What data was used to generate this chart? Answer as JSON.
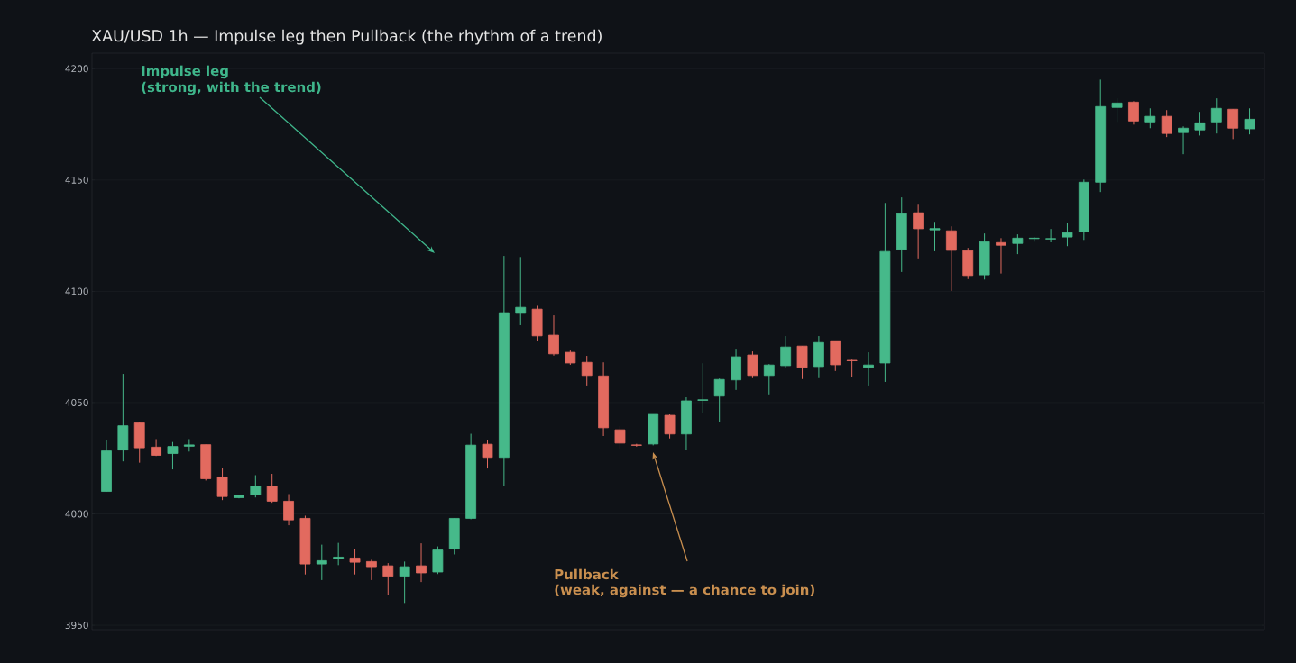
{
  "chart_data": {
    "type": "candlestick",
    "title": "XAU/USD 1h — Impulse leg then Pullback (the rhythm of a trend)",
    "categories": [
      null,
      null,
      null,
      null,
      null,
      null,
      null,
      null,
      null,
      null,
      null,
      null,
      null,
      null,
      null,
      null,
      null,
      null,
      null,
      null,
      null,
      null,
      null,
      null,
      null,
      null,
      null,
      null,
      null,
      null,
      null,
      null,
      null,
      null,
      null,
      null,
      null,
      null,
      null,
      null,
      null,
      null,
      null,
      null,
      null,
      null,
      null,
      null,
      null,
      null,
      null,
      null,
      null,
      null,
      null,
      null,
      null,
      null,
      null,
      null,
      null,
      null,
      null,
      null,
      null,
      null,
      null,
      null,
      null,
      null
    ],
    "ohlc": [
      [
        4010.1,
        4033,
        4010,
        4028.3
      ],
      [
        4028.7,
        4062.9,
        4023.6,
        4039.6
      ],
      [
        4040.9,
        4041,
        4023,
        4029.7
      ],
      [
        4030,
        4033.6,
        4026,
        4026.3
      ],
      [
        4027.1,
        4032.3,
        4020,
        4030.3
      ],
      [
        4030.4,
        4033.6,
        4028,
        4031
      ],
      [
        4031.1,
        4031.1,
        4015,
        4015.8
      ],
      [
        4016.6,
        4020.6,
        4006.2,
        4007.8
      ],
      [
        4007.3,
        4008.5,
        4007,
        4008.5
      ],
      [
        4008.5,
        4017.4,
        4007.4,
        4012.5
      ],
      [
        4012.5,
        4018,
        4005,
        4005.7
      ],
      [
        4005.7,
        4008.9,
        3994.9,
        3997.3
      ],
      [
        3998,
        3999.2,
        3972.8,
        3977.5
      ],
      [
        3977.5,
        3986.2,
        3970.3,
        3979
      ],
      [
        3979.8,
        3987,
        3977,
        3980.6
      ],
      [
        3980.2,
        3984.2,
        3972.8,
        3978.3
      ],
      [
        3978.6,
        3979.4,
        3970.3,
        3976.3
      ],
      [
        3976.7,
        3977.9,
        3963.5,
        3972
      ],
      [
        3972,
        3978.6,
        3960,
        3976.3
      ],
      [
        3976.7,
        3986.8,
        3969.4,
        3973.5
      ],
      [
        3973.9,
        3985.4,
        3973,
        3983.8
      ],
      [
        3984.2,
        3998,
        3981.8,
        3998
      ],
      [
        3998,
        4036,
        3997.6,
        4030.9
      ],
      [
        4031.3,
        4033.3,
        4020.4,
        4025.4
      ],
      [
        4025.4,
        4115.9,
        4012.4,
        4090.4
      ],
      [
        4090.1,
        4115.4,
        4084.8,
        4092.8
      ],
      [
        4092,
        4093.5,
        4077.5,
        4080
      ],
      [
        4080.3,
        4089.2,
        4071.1,
        4071.9
      ],
      [
        4072.6,
        4073.4,
        4067,
        4067.8
      ],
      [
        4068.1,
        4071,
        4057.7,
        4062.2
      ],
      [
        4062,
        4068.1,
        4035,
        4038.7
      ],
      [
        4037.8,
        4039.4,
        4029.4,
        4031.8
      ],
      [
        4031,
        4031.5,
        4030.2,
        4030.8
      ],
      [
        4031.4,
        4044.7,
        4030.8,
        4044.7
      ],
      [
        4044.3,
        4044.7,
        4033.9,
        4035.9
      ],
      [
        4035.9,
        4052.4,
        4028.6,
        4050.8
      ],
      [
        4051,
        4067.7,
        4045.2,
        4051.3
      ],
      [
        4052.9,
        4060.8,
        4041.1,
        4060.4
      ],
      [
        4060.2,
        4074.2,
        4055.7,
        4070.6
      ],
      [
        4071.4,
        4073,
        4061,
        4062.2
      ],
      [
        4062.2,
        4067.3,
        4053.7,
        4066.9
      ],
      [
        4066.6,
        4079.9,
        4065.8,
        4075
      ],
      [
        4075.4,
        4075.4,
        4060.6,
        4065.8
      ],
      [
        4066.2,
        4079.9,
        4061,
        4077
      ],
      [
        4077.8,
        4077.8,
        4064.2,
        4067
      ],
      [
        4069,
        4069.3,
        4061.4,
        4068.8
      ],
      [
        4065.8,
        4072.6,
        4057.7,
        4066.9
      ],
      [
        4067.8,
        4139.7,
        4059.3,
        4117.9
      ],
      [
        4118.8,
        4142.2,
        4108.7,
        4134.9
      ],
      [
        4135.3,
        4138.9,
        4114.8,
        4128.1
      ],
      [
        4127.6,
        4131.2,
        4118,
        4128.2
      ],
      [
        4127.2,
        4129.2,
        4100.2,
        4118.4
      ],
      [
        4118.3,
        4119.5,
        4105.5,
        4107.1
      ],
      [
        4107.4,
        4126,
        4105.3,
        4122.3
      ],
      [
        4121.9,
        4123.9,
        4108,
        4120.7
      ],
      [
        4121.5,
        4125.6,
        4116.7,
        4123.9
      ],
      [
        4123.7,
        4124.4,
        4122.3,
        4123.9
      ],
      [
        4123.5,
        4128,
        4122,
        4123.7
      ],
      [
        4124.4,
        4130.8,
        4120.3,
        4126.4
      ],
      [
        4126.8,
        4150.2,
        4123.1,
        4149
      ],
      [
        4149,
        4195.1,
        4144.6,
        4183
      ],
      [
        4182.6,
        4186.7,
        4176.1,
        4184.6
      ],
      [
        4185,
        4185.4,
        4174.9,
        4176.5
      ],
      [
        4176.1,
        4182.2,
        4173.3,
        4178.6
      ],
      [
        4178.6,
        4181.4,
        4169.3,
        4170.9
      ],
      [
        4171.3,
        4174.1,
        4161.6,
        4173.3
      ],
      [
        4172.5,
        4180.6,
        4170,
        4175.7
      ],
      [
        4176.1,
        4186.7,
        4170.9,
        4182.2
      ],
      [
        4181.8,
        4181.8,
        4168.4,
        4173.3
      ],
      [
        4173,
        4182.2,
        4170.5,
        4177.3
      ]
    ],
    "colors": [
      "#46b98a",
      "#46b98a",
      "#e26a5f",
      "#e26a5f",
      "#46b98a",
      "#46b98a",
      "#e26a5f",
      "#e26a5f",
      "#46b98a",
      "#46b98a",
      "#e26a5f",
      "#e26a5f",
      "#e26a5f",
      "#46b98a",
      "#46b98a",
      "#e26a5f",
      "#e26a5f",
      "#e26a5f",
      "#46b98a",
      "#e26a5f",
      "#46b98a",
      "#46b98a",
      "#46b98a",
      "#e26a5f",
      "#46b98a",
      "#46b98a",
      "#e26a5f",
      "#e26a5f",
      "#e26a5f",
      "#e26a5f",
      "#e26a5f",
      "#e26a5f",
      "#e26a5f",
      "#46b98a",
      "#e26a5f",
      "#46b98a",
      "#46b98a",
      "#46b98a",
      "#46b98a",
      "#e26a5f",
      "#46b98a",
      "#46b98a",
      "#e26a5f",
      "#46b98a",
      "#e26a5f",
      "#e26a5f",
      "#46b98a",
      "#46b98a",
      "#46b98a",
      "#e26a5f",
      "#46b98a",
      "#e26a5f",
      "#e26a5f",
      "#46b98a",
      "#e26a5f",
      "#46b98a",
      "#46b98a",
      "#46b98a",
      "#46b98a",
      "#46b98a",
      "#46b98a",
      "#46b98a",
      "#e26a5f",
      "#46b98a",
      "#e26a5f",
      "#46b98a",
      "#46b98a",
      "#46b98a",
      "#e26a5f",
      "#46b98a"
    ],
    "ylim": [
      3948,
      4207
    ],
    "yticks": [
      3950,
      4000,
      4050,
      4100,
      4150,
      4200
    ],
    "grid": "y",
    "annotations": [
      "Impulse leg",
      "(strong, with the trend)",
      "Pullback",
      "(weak, against — a chance to join)"
    ]
  }
}
